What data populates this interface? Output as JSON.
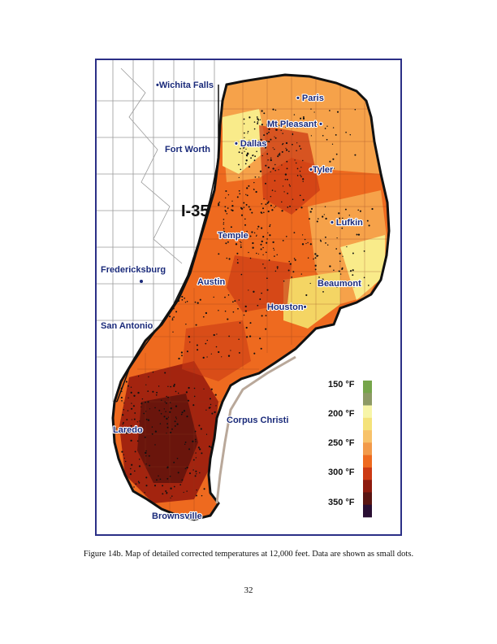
{
  "map": {
    "highway_label": "I-35",
    "cities": [
      {
        "id": "wichita-falls",
        "name": "•Wichita Falls"
      },
      {
        "id": "paris",
        "name": "• Paris"
      },
      {
        "id": "mt-pleasant",
        "name": "Mt Pleasant •"
      },
      {
        "id": "fort-worth",
        "name": "Fort Worth"
      },
      {
        "id": "dallas",
        "name": "• Dallas"
      },
      {
        "id": "tyler",
        "name": "•Tyler"
      },
      {
        "id": "lufkin",
        "name": "• Lufkin"
      },
      {
        "id": "temple",
        "name": "Temple"
      },
      {
        "id": "fredericksburg",
        "name": "Fredericksburg"
      },
      {
        "id": "austin",
        "name": "Austin"
      },
      {
        "id": "beaumont",
        "name": "Beaumont"
      },
      {
        "id": "houston",
        "name": "Houston•"
      },
      {
        "id": "san-antonio",
        "name": "San Antonio"
      },
      {
        "id": "corpus-christi",
        "name": "Corpus Christi"
      },
      {
        "id": "laredo",
        "name": "Laredo"
      },
      {
        "id": "brownsville",
        "name": "Brownsville"
      }
    ],
    "legend": {
      "labels": [
        "150 °F",
        "200 °F",
        "250 °F",
        "300 °F",
        "350 °F"
      ],
      "swatch_colors": [
        "#76a54a",
        "#8d9a65",
        "#f7f5a8",
        "#f4e27a",
        "#f7c26a",
        "#f29a4a",
        "#ee6a1f",
        "#cc3a14",
        "#8e1b0e",
        "#5a1512",
        "#2a0f33"
      ]
    },
    "colors": {
      "frame": "#2b2f86",
      "cool_zone": "#f9eb8a",
      "mid_zone": "#f6a24a",
      "warm_zone": "#e5571d",
      "hot_zone": "#a3240f",
      "hottest_zone": "#6a150c",
      "data_dot": "#111111"
    }
  },
  "caption": "Figure 14b.  Map of detailed corrected temperatures at 12,000 feet.  Data are shown as small dots.",
  "page_number": "32"
}
